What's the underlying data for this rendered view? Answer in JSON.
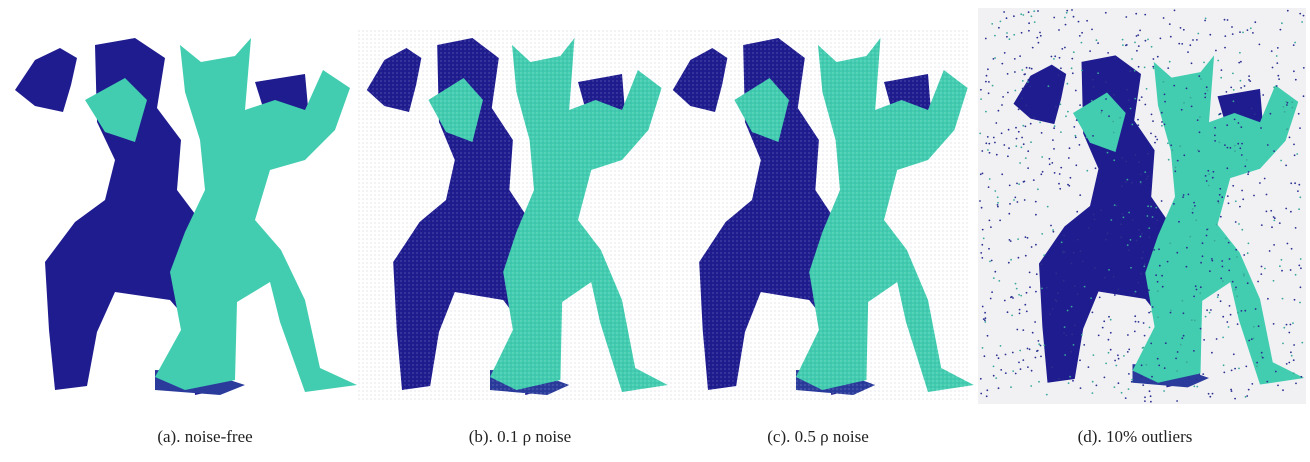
{
  "panels": [
    {
      "caption": "(a). noise-free"
    },
    {
      "caption": "(b). 0.1 ρ noise"
    },
    {
      "caption": "(c). 0.5 ρ noise"
    },
    {
      "caption": "(d). 10% outliers"
    }
  ]
}
